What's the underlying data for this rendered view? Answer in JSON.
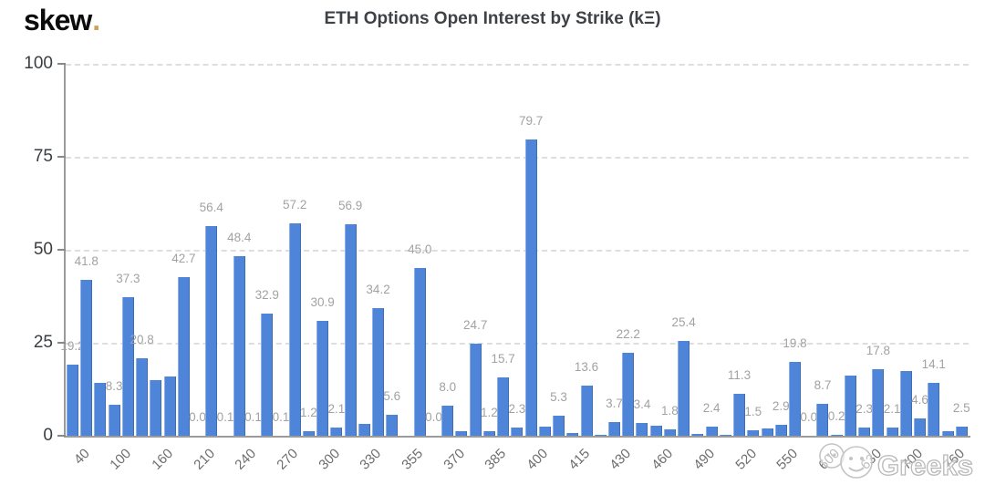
{
  "logo": {
    "text": "skew",
    "dot": "."
  },
  "title": "ETH Options Open Interest by Strike (kΞ)",
  "watermark": {
    "text": "Greeks",
    "icon": "chat-emoji-icon"
  },
  "colors": {
    "bar": "#4e85d9",
    "logo_dot": "#c8a455",
    "title_text": "#3e4246",
    "value_label": "#a2a2a2",
    "y_axis_label": "#3a3e42",
    "x_axis_label": "#6e6e6e",
    "axis_line": "#9b9b9b",
    "gridline": "#dedede",
    "watermark": "#bcbcbc",
    "background": "#ffffff"
  },
  "chart_data": {
    "type": "bar",
    "title": "ETH Options Open Interest by Strike (kΞ)",
    "xlabel": "",
    "ylabel": "",
    "ylim": [
      0,
      100
    ],
    "y_ticks": [
      0,
      25,
      50,
      75,
      100
    ],
    "grid": "horizontal dashed at 25/50/75/100",
    "legend": "none",
    "x_tick_every_n_bars": 3,
    "x_tick_labels": [
      "40",
      "100",
      "160",
      "210",
      "240",
      "270",
      "300",
      "330",
      "355",
      "370",
      "385",
      "400",
      "415",
      "430",
      "460",
      "490",
      "520",
      "550",
      "600",
      "630",
      "700",
      "760"
    ],
    "bars": [
      {
        "value": 19.2,
        "label": "19.2"
      },
      {
        "value": 41.8,
        "label": "41.8"
      },
      {
        "value": 14.2,
        "label": ""
      },
      {
        "value": 8.3,
        "label": "8.3"
      },
      {
        "value": 37.3,
        "label": "37.3"
      },
      {
        "value": 20.8,
        "label": "20.8"
      },
      {
        "value": 15.0,
        "label": ""
      },
      {
        "value": 15.9,
        "label": ""
      },
      {
        "value": 42.7,
        "label": "42.7"
      },
      {
        "value": 0.0,
        "label": "0.0"
      },
      {
        "value": 56.4,
        "label": "56.4"
      },
      {
        "value": 0.1,
        "label": "0.1"
      },
      {
        "value": 48.4,
        "label": "48.4"
      },
      {
        "value": 0.1,
        "label": "0.1"
      },
      {
        "value": 32.9,
        "label": "32.9"
      },
      {
        "value": 0.1,
        "label": "0.1"
      },
      {
        "value": 57.2,
        "label": "57.2"
      },
      {
        "value": 1.2,
        "label": "1.2"
      },
      {
        "value": 30.9,
        "label": "30.9"
      },
      {
        "value": 2.1,
        "label": "2.1"
      },
      {
        "value": 56.9,
        "label": "56.9"
      },
      {
        "value": 3.2,
        "label": ""
      },
      {
        "value": 34.2,
        "label": "34.2"
      },
      {
        "value": 5.6,
        "label": "5.6"
      },
      {
        "value": 0.0,
        "label": ""
      },
      {
        "value": 45.0,
        "label": "45.0"
      },
      {
        "value": 0.0,
        "label": "0.0"
      },
      {
        "value": 8.0,
        "label": "8.0"
      },
      {
        "value": 1.3,
        "label": ""
      },
      {
        "value": 24.7,
        "label": "24.7"
      },
      {
        "value": 1.2,
        "label": "1.2"
      },
      {
        "value": 15.7,
        "label": "15.7"
      },
      {
        "value": 2.3,
        "label": "2.3"
      },
      {
        "value": 79.7,
        "label": "79.7"
      },
      {
        "value": 2.4,
        "label": ""
      },
      {
        "value": 5.3,
        "label": "5.3"
      },
      {
        "value": 0.8,
        "label": ""
      },
      {
        "value": 13.6,
        "label": "13.6"
      },
      {
        "value": 0.2,
        "label": ""
      },
      {
        "value": 3.7,
        "label": "3.7"
      },
      {
        "value": 22.2,
        "label": "22.2"
      },
      {
        "value": 3.4,
        "label": "3.4"
      },
      {
        "value": 2.7,
        "label": ""
      },
      {
        "value": 1.8,
        "label": "1.8"
      },
      {
        "value": 25.4,
        "label": "25.4"
      },
      {
        "value": 0.5,
        "label": ""
      },
      {
        "value": 2.4,
        "label": "2.4"
      },
      {
        "value": 0.3,
        "label": ""
      },
      {
        "value": 11.3,
        "label": "11.3"
      },
      {
        "value": 1.5,
        "label": "1.5"
      },
      {
        "value": 2.0,
        "label": ""
      },
      {
        "value": 2.9,
        "label": "2.9"
      },
      {
        "value": 19.8,
        "label": "19.8"
      },
      {
        "value": 0.0,
        "label": "0.0"
      },
      {
        "value": 8.7,
        "label": "8.7"
      },
      {
        "value": 0.2,
        "label": "0.2"
      },
      {
        "value": 16.2,
        "label": ""
      },
      {
        "value": 2.3,
        "label": "2.3"
      },
      {
        "value": 17.8,
        "label": "17.8"
      },
      {
        "value": 2.1,
        "label": "2.1"
      },
      {
        "value": 17.5,
        "label": ""
      },
      {
        "value": 4.6,
        "label": "4.6"
      },
      {
        "value": 14.1,
        "label": "14.1"
      },
      {
        "value": 1.2,
        "label": ""
      },
      {
        "value": 2.5,
        "label": "2.5"
      }
    ]
  }
}
